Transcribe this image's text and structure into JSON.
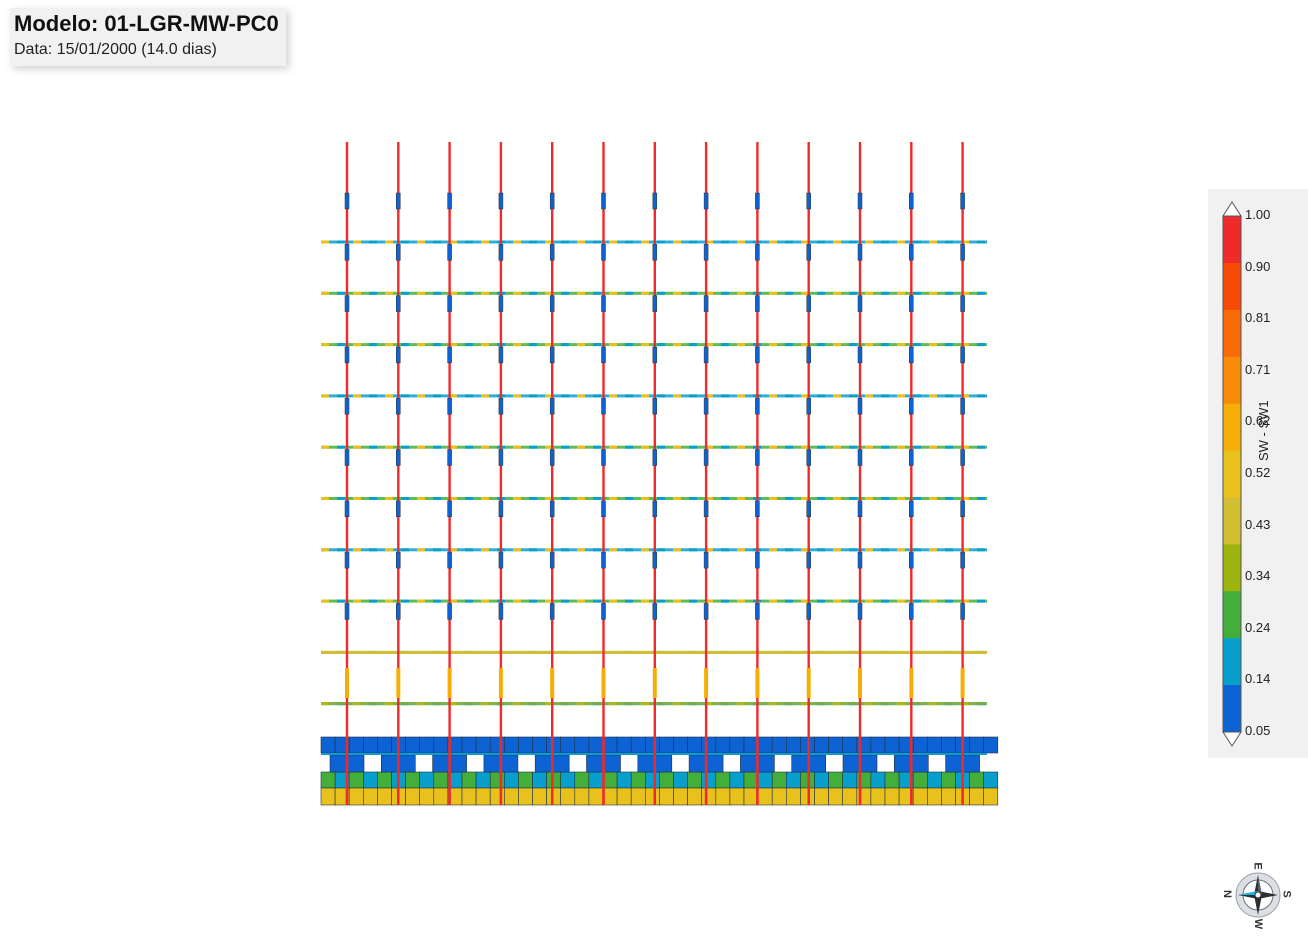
{
  "header": {
    "model_title": "Modelo: 01-LGR-MW-PC0",
    "date_line": "Data: 15/01/2000 (14.0 dias)"
  },
  "legend": {
    "title": "SW - SW1",
    "ticks": [
      "1.00",
      "0.90",
      "0.81",
      "0.71",
      "0.62",
      "0.52",
      "0.43",
      "0.34",
      "0.24",
      "0.14",
      "0.05"
    ],
    "colors": [
      "#ee2a2a",
      "#f64a06",
      "#f86a06",
      "#f98b08",
      "#f7ad08",
      "#e9c11c",
      "#d2be33",
      "#9db30e",
      "#44ae3a",
      "#099fcc",
      "#0d62d4"
    ]
  },
  "compass": {
    "north": "N",
    "south": "S",
    "east": "E",
    "west": "W"
  }
}
